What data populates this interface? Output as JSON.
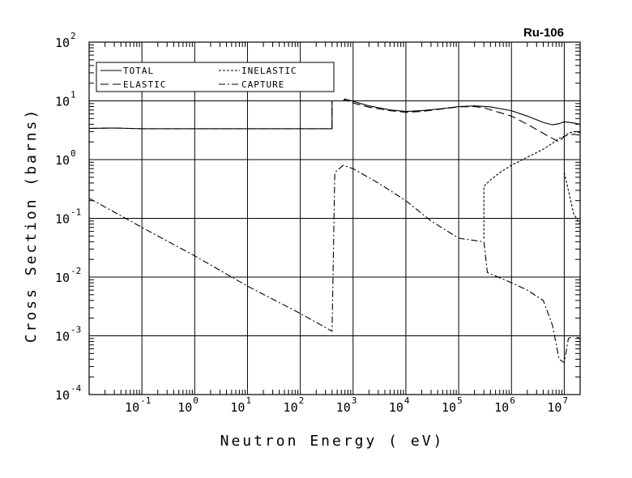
{
  "chart_data": {
    "type": "line",
    "title": "Ru-106",
    "xlabel": "Neutron Energy ( eV)",
    "ylabel": "Cross Section (barns)",
    "x_scale": "log",
    "y_scale": "log",
    "xlim": [
      0.01,
      20000000
    ],
    "ylim": [
      0.0001,
      100
    ],
    "grid": true,
    "legend_position": "top-left",
    "x_ticks": [
      {
        "base": "10",
        "exp": "-1",
        "value": 0.1
      },
      {
        "base": "10",
        "exp": "0",
        "value": 1
      },
      {
        "base": "10",
        "exp": "1",
        "value": 10
      },
      {
        "base": "10",
        "exp": "2",
        "value": 100
      },
      {
        "base": "10",
        "exp": "3",
        "value": 1000
      },
      {
        "base": "10",
        "exp": "4",
        "value": 10000
      },
      {
        "base": "10",
        "exp": "5",
        "value": 100000
      },
      {
        "base": "10",
        "exp": "6",
        "value": 1000000
      },
      {
        "base": "10",
        "exp": "7",
        "value": 10000000
      }
    ],
    "y_ticks": [
      {
        "base": "10",
        "exp": "2",
        "value": 100
      },
      {
        "base": "10",
        "exp": "1",
        "value": 10
      },
      {
        "base": "10",
        "exp": "0",
        "value": 1
      },
      {
        "base": "10",
        "exp": "-1",
        "value": 0.1
      },
      {
        "base": "10",
        "exp": "-2",
        "value": 0.01
      },
      {
        "base": "10",
        "exp": "-3",
        "value": 0.001
      },
      {
        "base": "10",
        "exp": "-4",
        "value": 0.0001
      }
    ],
    "series": [
      {
        "name": "TOTAL",
        "dash": "solid",
        "points": [
          [
            0.01,
            3.4
          ],
          [
            0.03,
            3.45
          ],
          [
            0.1,
            3.35
          ],
          [
            400,
            3.35
          ],
          [
            400,
            10
          ],
          [
            650,
            10
          ],
          [
            700,
            10.8
          ],
          [
            1000,
            9.8
          ],
          [
            2000,
            8.2
          ],
          [
            5000,
            7.0
          ],
          [
            10000,
            6.6
          ],
          [
            20000,
            6.8
          ],
          [
            50000,
            7.4
          ],
          [
            100000,
            8.0
          ],
          [
            200000,
            8.2
          ],
          [
            400000,
            7.9
          ],
          [
            1000000,
            6.8
          ],
          [
            2000000,
            5.5
          ],
          [
            4000000,
            4.3
          ],
          [
            6000000,
            3.9
          ],
          [
            8000000,
            4.1
          ],
          [
            10000000,
            4.4
          ],
          [
            15000000,
            4.2
          ],
          [
            20000000,
            4.0
          ]
        ]
      },
      {
        "name": "ELASTIC",
        "dash": "long-dash",
        "points": [
          [
            0.01,
            3.4
          ],
          [
            0.03,
            3.45
          ],
          [
            0.1,
            3.35
          ],
          [
            400,
            3.35
          ],
          [
            400,
            10
          ],
          [
            650,
            10
          ],
          [
            700,
            10.3
          ],
          [
            1000,
            9.2
          ],
          [
            2000,
            7.8
          ],
          [
            5000,
            6.8
          ],
          [
            10000,
            6.4
          ],
          [
            20000,
            6.6
          ],
          [
            50000,
            7.3
          ],
          [
            100000,
            7.9
          ],
          [
            200000,
            8.0
          ],
          [
            300000,
            7.6
          ],
          [
            1000000,
            5.5
          ],
          [
            2000000,
            4.0
          ],
          [
            4000000,
            2.8
          ],
          [
            6000000,
            2.3
          ],
          [
            8000000,
            2.0
          ],
          [
            10000000,
            2.5
          ],
          [
            15000000,
            2.7
          ],
          [
            20000000,
            2.6
          ]
        ]
      },
      {
        "name": "INELASTIC",
        "dash": "short-dash",
        "points": [
          [
            300000,
            0.045
          ],
          [
            300000,
            0.35
          ],
          [
            400000,
            0.45
          ],
          [
            600000,
            0.6
          ],
          [
            1000000,
            0.8
          ],
          [
            2000000,
            1.1
          ],
          [
            4000000,
            1.5
          ],
          [
            6000000,
            1.9
          ],
          [
            8000000,
            2.3
          ],
          [
            10000000,
            2.5
          ],
          [
            12000000,
            2.8
          ],
          [
            15000000,
            3.0
          ],
          [
            20000000,
            2.9
          ]
        ]
      },
      {
        "name": "CAPTURE",
        "dash": "dash-dot",
        "points": [
          [
            0.01,
            0.22
          ],
          [
            0.1,
            0.07
          ],
          [
            1,
            0.023
          ],
          [
            10,
            0.007
          ],
          [
            100,
            0.0024
          ],
          [
            400,
            0.0012
          ],
          [
            450,
            0.6
          ],
          [
            650,
            0.8
          ],
          [
            1000,
            0.7
          ],
          [
            3000,
            0.4
          ],
          [
            10000,
            0.2
          ],
          [
            30000,
            0.09
          ],
          [
            100000,
            0.046
          ],
          [
            300000,
            0.04
          ],
          [
            350000,
            0.012
          ],
          [
            1000000,
            0.008
          ],
          [
            2000000,
            0.006
          ],
          [
            4000000,
            0.004
          ],
          [
            6000000,
            0.0015
          ],
          [
            8000000,
            0.0004
          ],
          [
            10000000,
            0.00035
          ],
          [
            12000000,
            0.0009
          ],
          [
            15000000,
            0.001
          ],
          [
            20000000,
            0.0009
          ]
        ]
      },
      {
        "name": "",
        "dash": "short-dash",
        "points": [
          [
            10000000,
            0.6
          ],
          [
            12000000,
            0.3
          ],
          [
            15000000,
            0.12
          ],
          [
            20000000,
            0.08
          ]
        ]
      }
    ]
  }
}
